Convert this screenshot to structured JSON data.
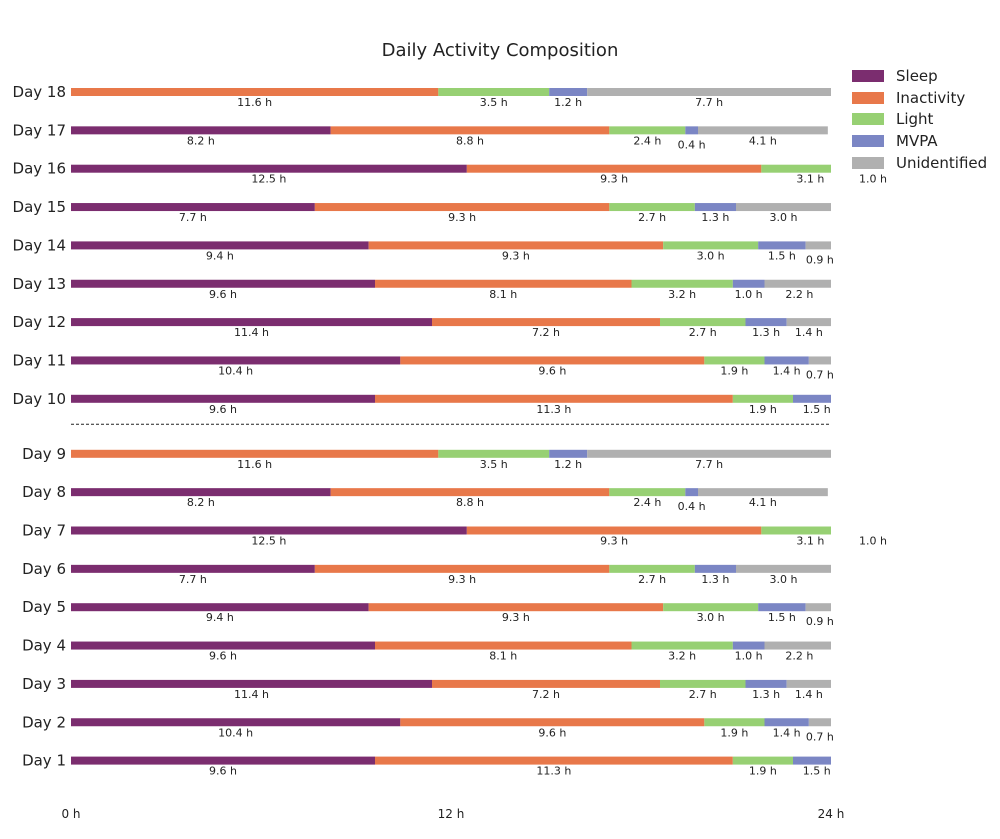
{
  "chart_data": {
    "type": "bar",
    "orientation": "horizontal",
    "stacked": true,
    "title": "Daily Activity Composition",
    "xlim": [
      0,
      24
    ],
    "x_ticks": [
      {
        "value": 0,
        "label": "0 h"
      },
      {
        "value": 12,
        "label": "12 h"
      },
      {
        "value": 24,
        "label": "24 h"
      }
    ],
    "categories": [
      "Sleep",
      "Inactivity",
      "Light",
      "MVPA",
      "Unidentified"
    ],
    "colors": {
      "Sleep": "#7b2d6f",
      "Inactivity": "#e8784a",
      "Light": "#97d073",
      "MVPA": "#7b86c4",
      "Unidentified": "#b0b0b0"
    },
    "legend": {
      "position": "top-right outside"
    },
    "grid": false,
    "separator_between": [
      "Day 10",
      "Day 9"
    ],
    "days": [
      {
        "label": "Day 18",
        "segments": [
          {
            "category": "Inactivity",
            "value": 11.6,
            "label": "11.6 h"
          },
          {
            "category": "Light",
            "value": 3.5,
            "label": "3.5 h"
          },
          {
            "category": "MVPA",
            "value": 1.2,
            "label": "1.2 h"
          },
          {
            "category": "Unidentified",
            "value": 7.7,
            "label": "7.7 h"
          }
        ]
      },
      {
        "label": "Day 17",
        "segments": [
          {
            "category": "Sleep",
            "value": 8.2,
            "label": "8.2 h"
          },
          {
            "category": "Inactivity",
            "value": 8.8,
            "label": "8.8 h"
          },
          {
            "category": "Light",
            "value": 2.4,
            "label": "2.4 h"
          },
          {
            "category": "MVPA",
            "value": 0.4,
            "label": "0.4 h"
          },
          {
            "category": "Unidentified",
            "value": 4.1,
            "label": "4.1 h"
          }
        ]
      },
      {
        "label": "Day 16",
        "segments": [
          {
            "category": "Sleep",
            "value": 12.5,
            "label": "12.5 h"
          },
          {
            "category": "Inactivity",
            "value": 9.3,
            "label": "9.3 h"
          },
          {
            "category": "Light",
            "value": 3.1,
            "label": "3.1 h"
          },
          {
            "category": "MVPA",
            "value": 1.0,
            "label": "1.0 h"
          }
        ]
      },
      {
        "label": "Day 15",
        "segments": [
          {
            "category": "Sleep",
            "value": 7.7,
            "label": "7.7 h"
          },
          {
            "category": "Inactivity",
            "value": 9.3,
            "label": "9.3 h"
          },
          {
            "category": "Light",
            "value": 2.7,
            "label": "2.7 h"
          },
          {
            "category": "MVPA",
            "value": 1.3,
            "label": "1.3 h"
          },
          {
            "category": "Unidentified",
            "value": 3.0,
            "label": "3.0 h"
          }
        ]
      },
      {
        "label": "Day 14",
        "segments": [
          {
            "category": "Sleep",
            "value": 9.4,
            "label": "9.4 h"
          },
          {
            "category": "Inactivity",
            "value": 9.3,
            "label": "9.3 h"
          },
          {
            "category": "Light",
            "value": 3.0,
            "label": "3.0 h"
          },
          {
            "category": "MVPA",
            "value": 1.5,
            "label": "1.5 h"
          },
          {
            "category": "Unidentified",
            "value": 0.9,
            "label": "0.9 h"
          }
        ]
      },
      {
        "label": "Day 13",
        "segments": [
          {
            "category": "Sleep",
            "value": 9.6,
            "label": "9.6 h"
          },
          {
            "category": "Inactivity",
            "value": 8.1,
            "label": "8.1 h"
          },
          {
            "category": "Light",
            "value": 3.2,
            "label": "3.2 h"
          },
          {
            "category": "MVPA",
            "value": 1.0,
            "label": "1.0 h"
          },
          {
            "category": "Unidentified",
            "value": 2.2,
            "label": "2.2 h"
          }
        ]
      },
      {
        "label": "Day 12",
        "segments": [
          {
            "category": "Sleep",
            "value": 11.4,
            "label": "11.4 h"
          },
          {
            "category": "Inactivity",
            "value": 7.2,
            "label": "7.2 h"
          },
          {
            "category": "Light",
            "value": 2.7,
            "label": "2.7 h"
          },
          {
            "category": "MVPA",
            "value": 1.3,
            "label": "1.3 h"
          },
          {
            "category": "Unidentified",
            "value": 1.4,
            "label": "1.4 h"
          }
        ]
      },
      {
        "label": "Day 11",
        "segments": [
          {
            "category": "Sleep",
            "value": 10.4,
            "label": "10.4 h"
          },
          {
            "category": "Inactivity",
            "value": 9.6,
            "label": "9.6 h"
          },
          {
            "category": "Light",
            "value": 1.9,
            "label": "1.9 h"
          },
          {
            "category": "MVPA",
            "value": 1.4,
            "label": "1.4 h"
          },
          {
            "category": "Unidentified",
            "value": 0.7,
            "label": "0.7 h"
          }
        ]
      },
      {
        "label": "Day 10",
        "segments": [
          {
            "category": "Sleep",
            "value": 9.6,
            "label": "9.6 h"
          },
          {
            "category": "Inactivity",
            "value": 11.3,
            "label": "11.3 h"
          },
          {
            "category": "Light",
            "value": 1.9,
            "label": "1.9 h"
          },
          {
            "category": "MVPA",
            "value": 1.5,
            "label": "1.5 h"
          }
        ]
      },
      {
        "label": "Day 9",
        "segments": [
          {
            "category": "Inactivity",
            "value": 11.6,
            "label": "11.6 h"
          },
          {
            "category": "Light",
            "value": 3.5,
            "label": "3.5 h"
          },
          {
            "category": "MVPA",
            "value": 1.2,
            "label": "1.2 h"
          },
          {
            "category": "Unidentified",
            "value": 7.7,
            "label": "7.7 h"
          }
        ]
      },
      {
        "label": "Day 8",
        "segments": [
          {
            "category": "Sleep",
            "value": 8.2,
            "label": "8.2 h"
          },
          {
            "category": "Inactivity",
            "value": 8.8,
            "label": "8.8 h"
          },
          {
            "category": "Light",
            "value": 2.4,
            "label": "2.4 h"
          },
          {
            "category": "MVPA",
            "value": 0.4,
            "label": "0.4 h"
          },
          {
            "category": "Unidentified",
            "value": 4.1,
            "label": "4.1 h"
          }
        ]
      },
      {
        "label": "Day 7",
        "segments": [
          {
            "category": "Sleep",
            "value": 12.5,
            "label": "12.5 h"
          },
          {
            "category": "Inactivity",
            "value": 9.3,
            "label": "9.3 h"
          },
          {
            "category": "Light",
            "value": 3.1,
            "label": "3.1 h"
          },
          {
            "category": "MVPA",
            "value": 1.0,
            "label": "1.0 h"
          }
        ]
      },
      {
        "label": "Day 6",
        "segments": [
          {
            "category": "Sleep",
            "value": 7.7,
            "label": "7.7 h"
          },
          {
            "category": "Inactivity",
            "value": 9.3,
            "label": "9.3 h"
          },
          {
            "category": "Light",
            "value": 2.7,
            "label": "2.7 h"
          },
          {
            "category": "MVPA",
            "value": 1.3,
            "label": "1.3 h"
          },
          {
            "category": "Unidentified",
            "value": 3.0,
            "label": "3.0 h"
          }
        ]
      },
      {
        "label": "Day 5",
        "segments": [
          {
            "category": "Sleep",
            "value": 9.4,
            "label": "9.4 h"
          },
          {
            "category": "Inactivity",
            "value": 9.3,
            "label": "9.3 h"
          },
          {
            "category": "Light",
            "value": 3.0,
            "label": "3.0 h"
          },
          {
            "category": "MVPA",
            "value": 1.5,
            "label": "1.5 h"
          },
          {
            "category": "Unidentified",
            "value": 0.9,
            "label": "0.9 h"
          }
        ]
      },
      {
        "label": "Day 4",
        "segments": [
          {
            "category": "Sleep",
            "value": 9.6,
            "label": "9.6 h"
          },
          {
            "category": "Inactivity",
            "value": 8.1,
            "label": "8.1 h"
          },
          {
            "category": "Light",
            "value": 3.2,
            "label": "3.2 h"
          },
          {
            "category": "MVPA",
            "value": 1.0,
            "label": "1.0 h"
          },
          {
            "category": "Unidentified",
            "value": 2.2,
            "label": "2.2 h"
          }
        ]
      },
      {
        "label": "Day 3",
        "segments": [
          {
            "category": "Sleep",
            "value": 11.4,
            "label": "11.4 h"
          },
          {
            "category": "Inactivity",
            "value": 7.2,
            "label": "7.2 h"
          },
          {
            "category": "Light",
            "value": 2.7,
            "label": "2.7 h"
          },
          {
            "category": "MVPA",
            "value": 1.3,
            "label": "1.3 h"
          },
          {
            "category": "Unidentified",
            "value": 1.4,
            "label": "1.4 h"
          }
        ]
      },
      {
        "label": "Day 2",
        "segments": [
          {
            "category": "Sleep",
            "value": 10.4,
            "label": "10.4 h"
          },
          {
            "category": "Inactivity",
            "value": 9.6,
            "label": "9.6 h"
          },
          {
            "category": "Light",
            "value": 1.9,
            "label": "1.9 h"
          },
          {
            "category": "MVPA",
            "value": 1.4,
            "label": "1.4 h"
          },
          {
            "category": "Unidentified",
            "value": 0.7,
            "label": "0.7 h"
          }
        ]
      },
      {
        "label": "Day 1",
        "segments": [
          {
            "category": "Sleep",
            "value": 9.6,
            "label": "9.6 h"
          },
          {
            "category": "Inactivity",
            "value": 11.3,
            "label": "11.3 h"
          },
          {
            "category": "Light",
            "value": 1.9,
            "label": "1.9 h"
          },
          {
            "category": "MVPA",
            "value": 1.5,
            "label": "1.5 h"
          }
        ]
      }
    ]
  }
}
